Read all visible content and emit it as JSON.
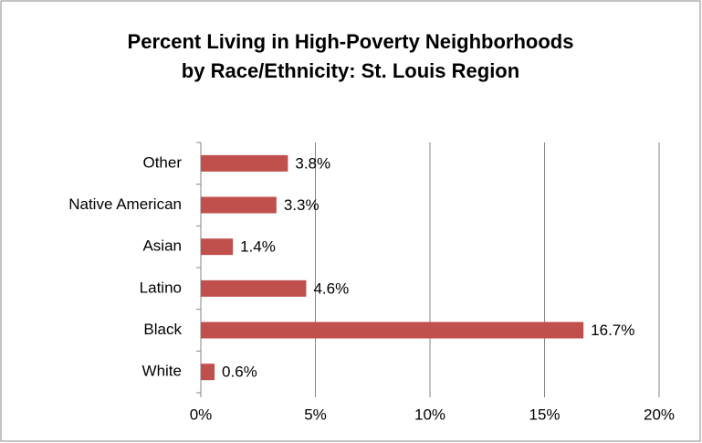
{
  "chart_data": {
    "type": "bar",
    "orientation": "horizontal",
    "title": "Percent Living in High-Poverty Neighborhoods by Race/Ethnicity: St. Louis Region",
    "categories": [
      "Other",
      "Native American",
      "Asian",
      "Latino",
      "Black",
      "White"
    ],
    "values": [
      3.8,
      3.3,
      1.4,
      4.6,
      16.7,
      0.6
    ],
    "value_labels": [
      "3.8%",
      "3.3%",
      "1.4%",
      "4.6%",
      "16.7%",
      "0.6%"
    ],
    "color": "#c0504d",
    "xlim": [
      0,
      20
    ],
    "xticks": [
      {
        "value": 0,
        "label": "0%"
      },
      {
        "value": 5,
        "label": "5%"
      },
      {
        "value": 10,
        "label": "10%"
      },
      {
        "value": 15,
        "label": "15%"
      },
      {
        "value": 20,
        "label": "20%"
      }
    ],
    "grid": true
  }
}
